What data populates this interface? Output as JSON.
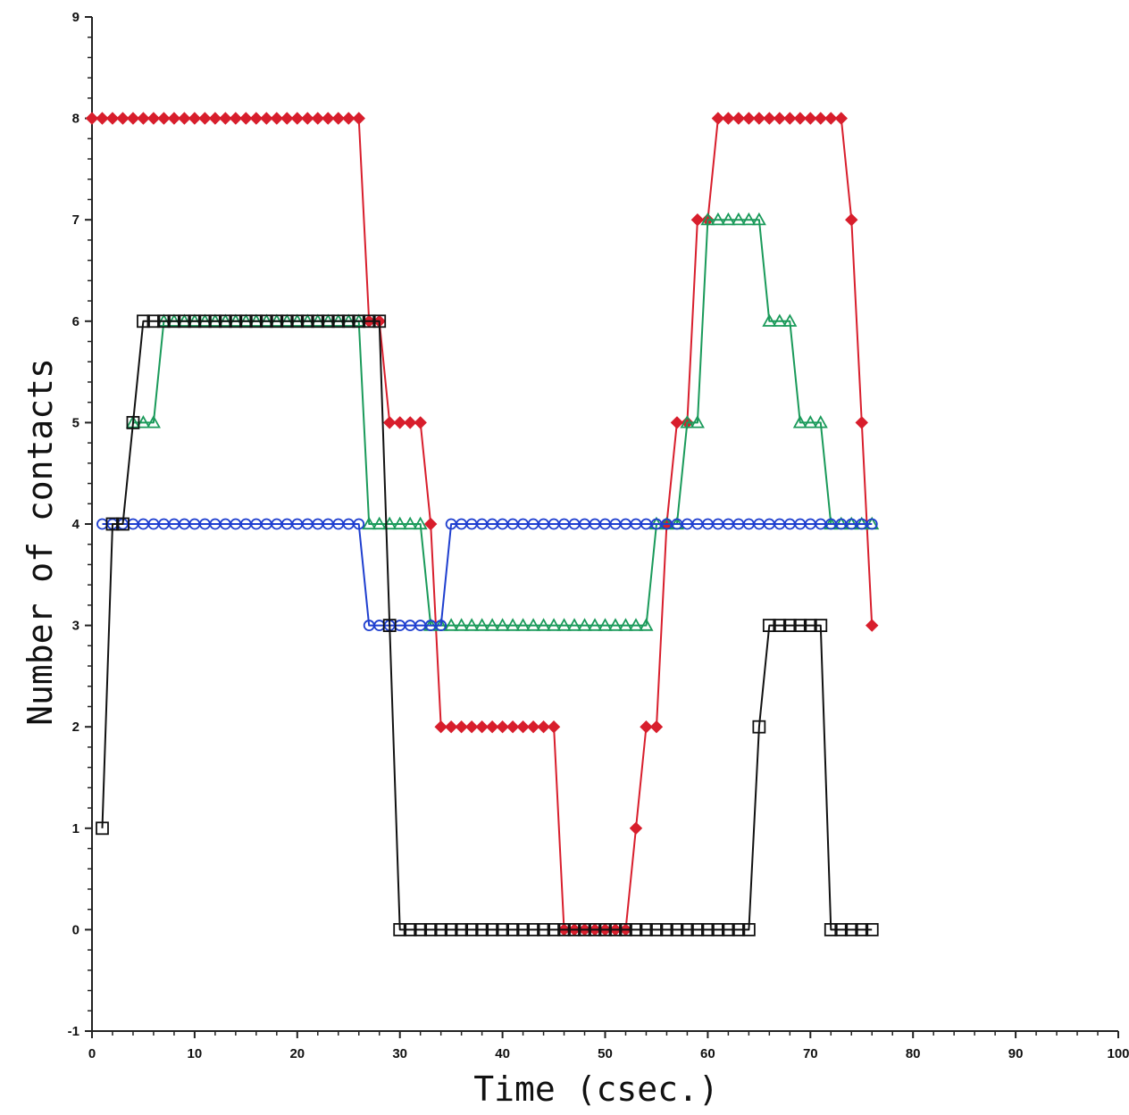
{
  "chart_data": {
    "type": "line",
    "title": "",
    "xlabel": "Time (csec.)",
    "ylabel": "Number of contacts",
    "xlim": [
      0,
      100
    ],
    "ylim": [
      -1,
      9
    ],
    "xticks": [
      0,
      10,
      20,
      30,
      40,
      50,
      60,
      70,
      80,
      90,
      100
    ],
    "yticks": [
      -1,
      0,
      1,
      2,
      3,
      4,
      5,
      6,
      7,
      8,
      9
    ],
    "grid": false,
    "legend": "none",
    "series": [
      {
        "color": "#d81e2c",
        "marker": "diamond",
        "points": [
          [
            0,
            8
          ],
          [
            1,
            8
          ],
          [
            2,
            8
          ],
          [
            3,
            8
          ],
          [
            4,
            8
          ],
          [
            5,
            8
          ],
          [
            6,
            8
          ],
          [
            7,
            8
          ],
          [
            8,
            8
          ],
          [
            9,
            8
          ],
          [
            10,
            8
          ],
          [
            11,
            8
          ],
          [
            12,
            8
          ],
          [
            13,
            8
          ],
          [
            14,
            8
          ],
          [
            15,
            8
          ],
          [
            16,
            8
          ],
          [
            17,
            8
          ],
          [
            18,
            8
          ],
          [
            19,
            8
          ],
          [
            20,
            8
          ],
          [
            21,
            8
          ],
          [
            22,
            8
          ],
          [
            23,
            8
          ],
          [
            24,
            8
          ],
          [
            25,
            8
          ],
          [
            26,
            8
          ],
          [
            27,
            6
          ],
          [
            28,
            6
          ],
          [
            29,
            5
          ],
          [
            30,
            5
          ],
          [
            31,
            5
          ],
          [
            32,
            5
          ],
          [
            33,
            4
          ],
          [
            34,
            2
          ],
          [
            35,
            2
          ],
          [
            36,
            2
          ],
          [
            37,
            2
          ],
          [
            38,
            2
          ],
          [
            39,
            2
          ],
          [
            40,
            2
          ],
          [
            41,
            2
          ],
          [
            42,
            2
          ],
          [
            43,
            2
          ],
          [
            44,
            2
          ],
          [
            45,
            2
          ],
          [
            46,
            0
          ],
          [
            47,
            0
          ],
          [
            48,
            0
          ],
          [
            49,
            0
          ],
          [
            50,
            0
          ],
          [
            51,
            0
          ],
          [
            52,
            0
          ],
          [
            53,
            1
          ],
          [
            54,
            2
          ],
          [
            55,
            2
          ],
          [
            56,
            4
          ],
          [
            57,
            5
          ],
          [
            58,
            5
          ],
          [
            59,
            7
          ],
          [
            60,
            7
          ],
          [
            61,
            8
          ],
          [
            62,
            8
          ],
          [
            63,
            8
          ],
          [
            64,
            8
          ],
          [
            65,
            8
          ],
          [
            66,
            8
          ],
          [
            67,
            8
          ],
          [
            68,
            8
          ],
          [
            69,
            8
          ],
          [
            70,
            8
          ],
          [
            71,
            8
          ],
          [
            72,
            8
          ],
          [
            73,
            8
          ],
          [
            74,
            7
          ],
          [
            75,
            5
          ],
          [
            76,
            3
          ]
        ]
      },
      {
        "color": "#1a9a5a",
        "marker": "triangle",
        "points": [
          [
            4,
            5
          ],
          [
            5,
            5
          ],
          [
            6,
            5
          ],
          [
            7,
            6
          ],
          [
            8,
            6
          ],
          [
            9,
            6
          ],
          [
            10,
            6
          ],
          [
            11,
            6
          ],
          [
            12,
            6
          ],
          [
            13,
            6
          ],
          [
            14,
            6
          ],
          [
            15,
            6
          ],
          [
            16,
            6
          ],
          [
            17,
            6
          ],
          [
            18,
            6
          ],
          [
            19,
            6
          ],
          [
            20,
            6
          ],
          [
            21,
            6
          ],
          [
            22,
            6
          ],
          [
            23,
            6
          ],
          [
            24,
            6
          ],
          [
            25,
            6
          ],
          [
            26,
            6
          ],
          [
            27,
            4
          ],
          [
            28,
            4
          ],
          [
            29,
            4
          ],
          [
            30,
            4
          ],
          [
            31,
            4
          ],
          [
            32,
            4
          ],
          [
            33,
            3
          ],
          [
            34,
            3
          ],
          [
            35,
            3
          ],
          [
            36,
            3
          ],
          [
            37,
            3
          ],
          [
            38,
            3
          ],
          [
            39,
            3
          ],
          [
            40,
            3
          ],
          [
            41,
            3
          ],
          [
            42,
            3
          ],
          [
            43,
            3
          ],
          [
            44,
            3
          ],
          [
            45,
            3
          ],
          [
            46,
            3
          ],
          [
            47,
            3
          ],
          [
            48,
            3
          ],
          [
            49,
            3
          ],
          [
            50,
            3
          ],
          [
            51,
            3
          ],
          [
            52,
            3
          ],
          [
            53,
            3
          ],
          [
            54,
            3
          ],
          [
            55,
            4
          ],
          [
            56,
            4
          ],
          [
            57,
            4
          ],
          [
            58,
            5
          ],
          [
            59,
            5
          ],
          [
            60,
            7
          ],
          [
            61,
            7
          ],
          [
            62,
            7
          ],
          [
            63,
            7
          ],
          [
            64,
            7
          ],
          [
            65,
            7
          ],
          [
            66,
            6
          ],
          [
            67,
            6
          ],
          [
            68,
            6
          ],
          [
            69,
            5
          ],
          [
            70,
            5
          ],
          [
            71,
            5
          ],
          [
            72,
            4
          ],
          [
            73,
            4
          ],
          [
            74,
            4
          ],
          [
            75,
            4
          ],
          [
            76,
            4
          ]
        ]
      },
      {
        "color": "#1f3fcf",
        "marker": "circle",
        "points": [
          [
            1,
            4
          ],
          [
            2,
            4
          ],
          [
            3,
            4
          ],
          [
            4,
            4
          ],
          [
            5,
            4
          ],
          [
            6,
            4
          ],
          [
            7,
            4
          ],
          [
            8,
            4
          ],
          [
            9,
            4
          ],
          [
            10,
            4
          ],
          [
            11,
            4
          ],
          [
            12,
            4
          ],
          [
            13,
            4
          ],
          [
            14,
            4
          ],
          [
            15,
            4
          ],
          [
            16,
            4
          ],
          [
            17,
            4
          ],
          [
            18,
            4
          ],
          [
            19,
            4
          ],
          [
            20,
            4
          ],
          [
            21,
            4
          ],
          [
            22,
            4
          ],
          [
            23,
            4
          ],
          [
            24,
            4
          ],
          [
            25,
            4
          ],
          [
            26,
            4
          ],
          [
            27,
            3
          ],
          [
            28,
            3
          ],
          [
            29,
            3
          ],
          [
            30,
            3
          ],
          [
            31,
            3
          ],
          [
            32,
            3
          ],
          [
            33,
            3
          ],
          [
            34,
            3
          ],
          [
            35,
            4
          ],
          [
            36,
            4
          ],
          [
            37,
            4
          ],
          [
            38,
            4
          ],
          [
            39,
            4
          ],
          [
            40,
            4
          ],
          [
            41,
            4
          ],
          [
            42,
            4
          ],
          [
            43,
            4
          ],
          [
            44,
            4
          ],
          [
            45,
            4
          ],
          [
            46,
            4
          ],
          [
            47,
            4
          ],
          [
            48,
            4
          ],
          [
            49,
            4
          ],
          [
            50,
            4
          ],
          [
            51,
            4
          ],
          [
            52,
            4
          ],
          [
            53,
            4
          ],
          [
            54,
            4
          ],
          [
            55,
            4
          ],
          [
            56,
            4
          ],
          [
            57,
            4
          ],
          [
            58,
            4
          ],
          [
            59,
            4
          ],
          [
            60,
            4
          ],
          [
            61,
            4
          ],
          [
            62,
            4
          ],
          [
            63,
            4
          ],
          [
            64,
            4
          ],
          [
            65,
            4
          ],
          [
            66,
            4
          ],
          [
            67,
            4
          ],
          [
            68,
            4
          ],
          [
            69,
            4
          ],
          [
            70,
            4
          ],
          [
            71,
            4
          ],
          [
            72,
            4
          ],
          [
            73,
            4
          ],
          [
            74,
            4
          ],
          [
            75,
            4
          ],
          [
            76,
            4
          ]
        ]
      },
      {
        "color": "#111111",
        "marker": "square",
        "points": [
          [
            1,
            1
          ],
          [
            2,
            4
          ],
          [
            3,
            4
          ],
          [
            4,
            5
          ],
          [
            5,
            6
          ],
          [
            6,
            6
          ],
          [
            7,
            6
          ],
          [
            8,
            6
          ],
          [
            9,
            6
          ],
          [
            10,
            6
          ],
          [
            11,
            6
          ],
          [
            12,
            6
          ],
          [
            13,
            6
          ],
          [
            14,
            6
          ],
          [
            15,
            6
          ],
          [
            16,
            6
          ],
          [
            17,
            6
          ],
          [
            18,
            6
          ],
          [
            19,
            6
          ],
          [
            20,
            6
          ],
          [
            21,
            6
          ],
          [
            22,
            6
          ],
          [
            23,
            6
          ],
          [
            24,
            6
          ],
          [
            25,
            6
          ],
          [
            26,
            6
          ],
          [
            27,
            6
          ],
          [
            28,
            6
          ],
          [
            29,
            3
          ],
          [
            30,
            0
          ],
          [
            31,
            0
          ],
          [
            32,
            0
          ],
          [
            33,
            0
          ],
          [
            34,
            0
          ],
          [
            35,
            0
          ],
          [
            36,
            0
          ],
          [
            37,
            0
          ],
          [
            38,
            0
          ],
          [
            39,
            0
          ],
          [
            40,
            0
          ],
          [
            41,
            0
          ],
          [
            42,
            0
          ],
          [
            43,
            0
          ],
          [
            44,
            0
          ],
          [
            45,
            0
          ],
          [
            46,
            0
          ],
          [
            47,
            0
          ],
          [
            48,
            0
          ],
          [
            49,
            0
          ],
          [
            50,
            0
          ],
          [
            51,
            0
          ],
          [
            52,
            0
          ],
          [
            53,
            0
          ],
          [
            54,
            0
          ],
          [
            55,
            0
          ],
          [
            56,
            0
          ],
          [
            57,
            0
          ],
          [
            58,
            0
          ],
          [
            59,
            0
          ],
          [
            60,
            0
          ],
          [
            61,
            0
          ],
          [
            62,
            0
          ],
          [
            63,
            0
          ],
          [
            64,
            0
          ],
          [
            65,
            2
          ],
          [
            66,
            3
          ],
          [
            67,
            3
          ],
          [
            68,
            3
          ],
          [
            69,
            3
          ],
          [
            70,
            3
          ],
          [
            71,
            3
          ],
          [
            72,
            0
          ],
          [
            73,
            0
          ],
          [
            74,
            0
          ],
          [
            75,
            0
          ],
          [
            76,
            0
          ]
        ]
      }
    ]
  }
}
